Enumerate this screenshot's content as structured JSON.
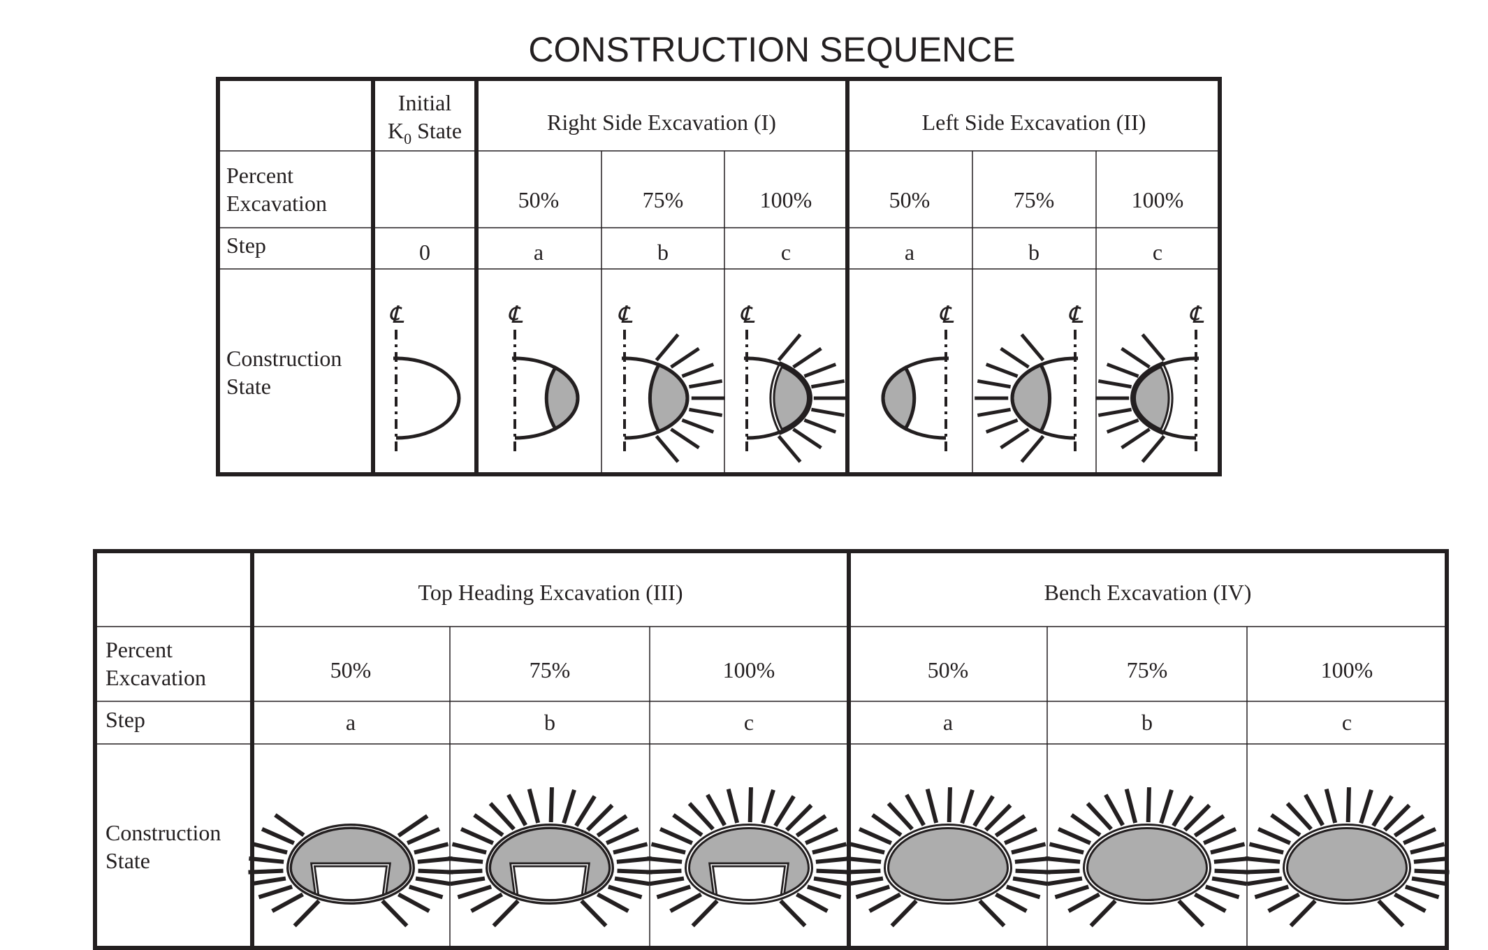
{
  "title": "CONSTRUCTION SEQUENCE",
  "colors": {
    "ink": "#231f20",
    "excavated_fill": "#adadad",
    "background": "#ffffff"
  },
  "centerline_symbol": "℄",
  "top_table": {
    "row_labels": {
      "percent": [
        "Percent",
        "Excavation"
      ],
      "step": "Step",
      "state": [
        "Construction",
        "State"
      ]
    },
    "initial": {
      "header_line1": "Initial",
      "header_k": "K",
      "header_sub": "0",
      "header_rest": " State",
      "percent": "",
      "step": "0"
    },
    "groups": [
      {
        "header": "Right Side Excavation (I)",
        "side": "right",
        "columns": [
          {
            "percent": "50%",
            "step": "a"
          },
          {
            "percent": "75%",
            "step": "b"
          },
          {
            "percent": "100%",
            "step": "c"
          }
        ]
      },
      {
        "header": "Left Side Excavation (II)",
        "side": "left",
        "columns": [
          {
            "percent": "50%",
            "step": "a"
          },
          {
            "percent": "75%",
            "step": "b"
          },
          {
            "percent": "100%",
            "step": "c"
          }
        ]
      }
    ]
  },
  "bottom_table": {
    "row_labels": {
      "percent": [
        "Percent",
        "Excavation"
      ],
      "step": "Step",
      "state": [
        "Construction",
        "State"
      ]
    },
    "groups": [
      {
        "header": "Top Heading Excavation (III)",
        "columns": [
          {
            "percent": "50%",
            "step": "a"
          },
          {
            "percent": "75%",
            "step": "b"
          },
          {
            "percent": "100%",
            "step": "c"
          }
        ]
      },
      {
        "header": "Bench Excavation (IV)",
        "columns": [
          {
            "percent": "50%",
            "step": "a"
          },
          {
            "percent": "75%",
            "step": "b"
          },
          {
            "percent": "100%",
            "step": "c"
          }
        ]
      }
    ]
  }
}
